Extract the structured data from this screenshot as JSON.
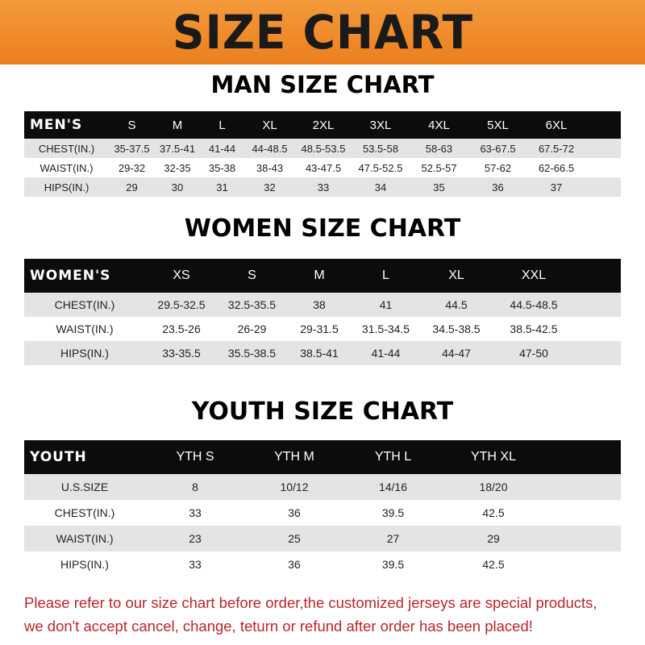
{
  "banner": {
    "title": "SIZE CHART",
    "color": "#ef8a2a"
  },
  "men": {
    "title": "MAN SIZE CHART",
    "header": "MEN'S",
    "sizes": [
      "S",
      "M",
      "L",
      "XL",
      "2XL",
      "3XL",
      "4XL",
      "5XL",
      "6XL"
    ],
    "rows": [
      {
        "label": "CHEST(IN.)",
        "values": [
          "35-37.5",
          "37.5-41",
          "41-44",
          "44-48.5",
          "48.5-53.5",
          "53.5-58",
          "58-63",
          "63-67.5",
          "67.5-72"
        ]
      },
      {
        "label": "WAIST(IN.)",
        "values": [
          "29-32",
          "32-35",
          "35-38",
          "38-43",
          "43-47.5",
          "47.5-52.5",
          "52.5-57",
          "57-62",
          "62-66.5"
        ]
      },
      {
        "label": "HIPS(IN.)",
        "values": [
          "29",
          "30",
          "31",
          "32",
          "33",
          "34",
          "35",
          "36",
          "37"
        ]
      }
    ]
  },
  "women": {
    "title": "WOMEN SIZE CHART",
    "header": "WOMEN'S",
    "sizes": [
      "XS",
      "S",
      "M",
      "L",
      "XL",
      "XXL"
    ],
    "rows": [
      {
        "label": "CHEST(IN.)",
        "values": [
          "29.5-32.5",
          "32.5-35.5",
          "38",
          "41",
          "44.5",
          "44.5-48.5"
        ]
      },
      {
        "label": "WAIST(IN.)",
        "values": [
          "23.5-26",
          "26-29",
          "29-31.5",
          "31.5-34.5",
          "34.5-38.5",
          "38.5-42.5"
        ]
      },
      {
        "label": "HIPS(IN.)",
        "values": [
          "33-35.5",
          "35.5-38.5",
          "38.5-41",
          "41-44",
          "44-47",
          "47-50"
        ]
      }
    ]
  },
  "youth": {
    "title": "YOUTH SIZE CHART",
    "header": "YOUTH",
    "sizes": [
      "YTH S",
      "YTH M",
      "YTH L",
      "YTH XL"
    ],
    "rows": [
      {
        "label": "U.S.SIZE",
        "values": [
          "8",
          "10/12",
          "14/16",
          "18/20"
        ]
      },
      {
        "label": "CHEST(IN.)",
        "values": [
          "33",
          "36",
          "39.5",
          "42.5"
        ]
      },
      {
        "label": "WAIST(IN.)",
        "values": [
          "23",
          "25",
          "27",
          "29"
        ]
      },
      {
        "label": "HIPS(IN.)",
        "values": [
          "33",
          "36",
          "39.5",
          "42.5"
        ]
      }
    ]
  },
  "note": {
    "line1": "Please refer to our size chart before order,the customized jerseys are special products,",
    "line2": "we don't accept cancel, change, teturn or refund after order has been placed!"
  }
}
